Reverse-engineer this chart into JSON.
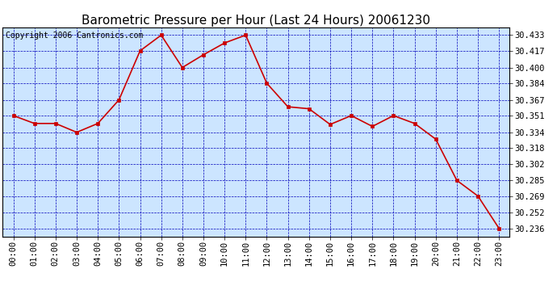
{
  "title": "Barometric Pressure per Hour (Last 24 Hours) 20061230",
  "copyright": "Copyright 2006 Cantronics.com",
  "hours": [
    "00:00",
    "01:00",
    "02:00",
    "03:00",
    "04:00",
    "05:00",
    "06:00",
    "07:00",
    "08:00",
    "09:00",
    "10:00",
    "11:00",
    "12:00",
    "13:00",
    "14:00",
    "15:00",
    "16:00",
    "17:00",
    "18:00",
    "19:00",
    "20:00",
    "21:00",
    "22:00",
    "23:00"
  ],
  "values": [
    30.351,
    30.343,
    30.343,
    30.334,
    30.343,
    30.367,
    30.417,
    30.433,
    30.4,
    30.413,
    30.425,
    30.433,
    30.384,
    30.36,
    30.358,
    30.342,
    30.351,
    30.34,
    30.351,
    30.343,
    30.327,
    30.285,
    30.269,
    30.236
  ],
  "yticks": [
    30.236,
    30.252,
    30.269,
    30.285,
    30.302,
    30.318,
    30.334,
    30.351,
    30.367,
    30.384,
    30.4,
    30.417,
    30.433
  ],
  "ylim_min": 30.228,
  "ylim_max": 30.441,
  "line_color": "#cc0000",
  "marker_color": "#cc0000",
  "fig_bg_color": "#ffffff",
  "plot_bg": "#cce5ff",
  "grid_color": "#0000bb",
  "border_color": "#000000",
  "title_color": "#000000",
  "copyright_color": "#000000",
  "title_fontsize": 11,
  "copyright_fontsize": 7,
  "tick_fontsize": 7.5,
  "marker_size": 3
}
